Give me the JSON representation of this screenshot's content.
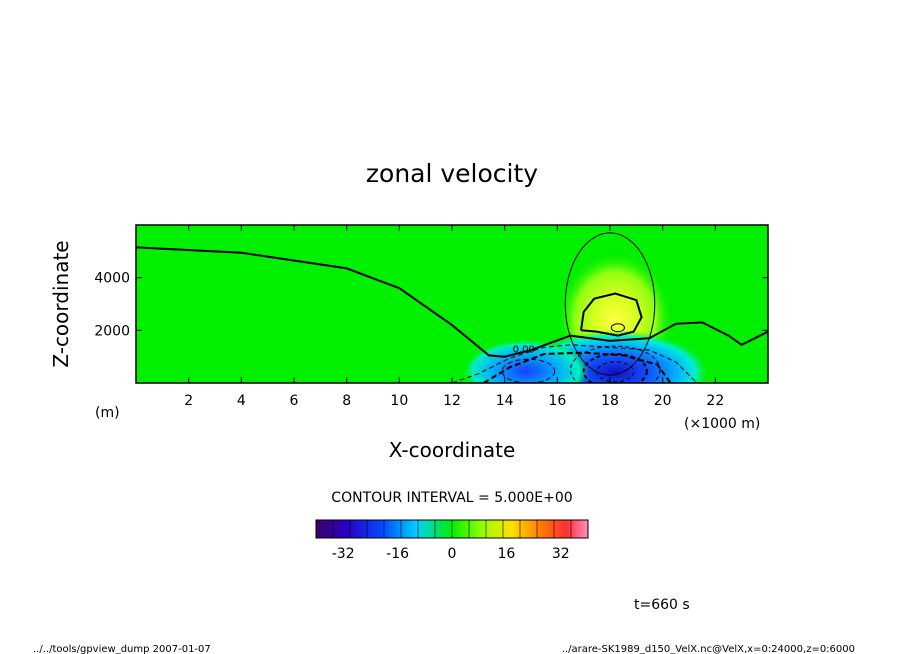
{
  "chart_data": {
    "type": "heatmap",
    "title": "zonal velocity",
    "xlabel": "X-coordinate",
    "ylabel": "Z-coordinate",
    "x_unit": "(×1000 m)",
    "y_unit": "(m)",
    "xlim": [
      0,
      24
    ],
    "ylim": [
      0,
      6000
    ],
    "x_ticks": [
      "2",
      "4",
      "6",
      "8",
      "10",
      "12",
      "14",
      "16",
      "18",
      "20",
      "22"
    ],
    "x_tick_values": [
      2,
      4,
      6,
      8,
      10,
      12,
      14,
      16,
      18,
      20,
      22
    ],
    "y_ticks": [
      "2000",
      "4000"
    ],
    "y_tick_values": [
      2000,
      4000
    ],
    "contour_interval_text": "CONTOUR INTERVAL = 5.000E+00",
    "contour_labels": [
      "0.00"
    ],
    "colorbar": {
      "range": [
        -40,
        40
      ],
      "tick_labels": [
        "-32",
        "-16",
        "0",
        "16",
        "32"
      ],
      "tick_values": [
        -32,
        -16,
        0,
        16,
        32
      ]
    },
    "features": {
      "background_velocity": 0,
      "zero_contour": [
        [
          0,
          5150
        ],
        [
          4,
          4950
        ],
        [
          8,
          4350
        ],
        [
          10,
          3600
        ],
        [
          12,
          2200
        ],
        [
          13.4,
          1050
        ],
        [
          14,
          1000
        ],
        [
          15,
          1250
        ],
        [
          16.5,
          1800
        ],
        [
          18,
          1600
        ],
        [
          19.5,
          1700
        ],
        [
          20.5,
          2250
        ],
        [
          21.5,
          2300
        ],
        [
          22.5,
          1800
        ],
        [
          23,
          1450
        ],
        [
          24,
          1950
        ]
      ],
      "positive_core": {
        "x": 18.2,
        "z": 2100,
        "max": 10
      },
      "negative_core": {
        "x": 18.2,
        "z": 400,
        "min": -32
      }
    }
  },
  "footer": {
    "time_label": "t=660 s",
    "left_note": "../../tools/gpview_dump  2007-01-07",
    "right_note": "../arare-SK1989_d150_VelX.nc@VelX,x=0:24000,z=0:6000"
  }
}
